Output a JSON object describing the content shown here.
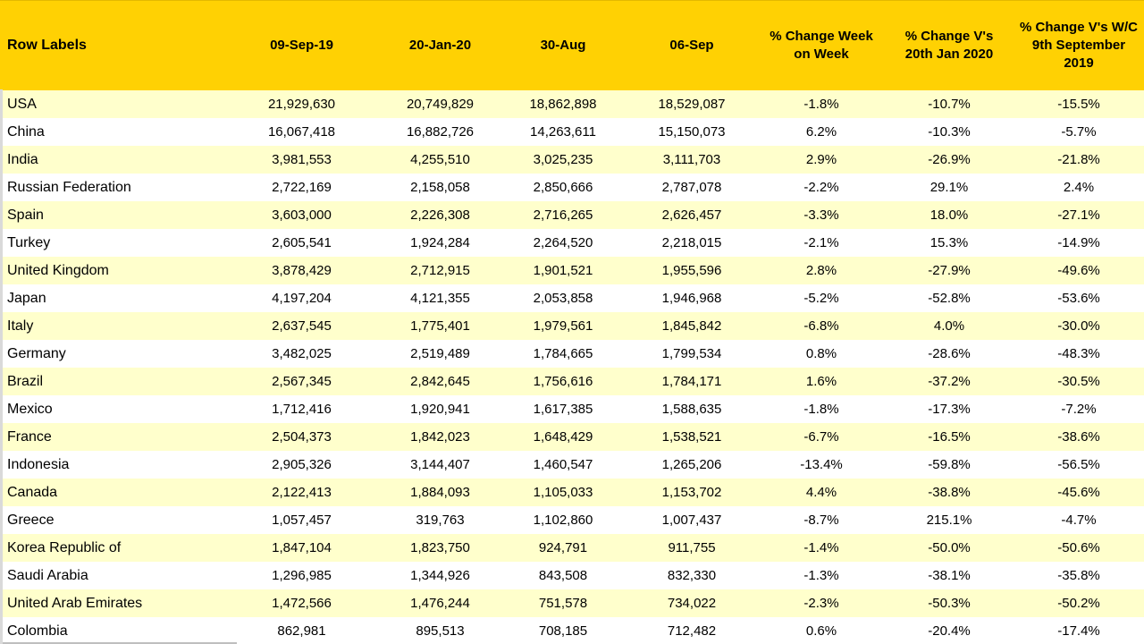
{
  "table": {
    "columns": [
      "Row Labels",
      "09-Sep-19",
      "20-Jan-20",
      "30-Aug",
      "06-Sep",
      "% Change Week on Week",
      "% Change V's 20th Jan 2020",
      "% Change V's W/C 9th September 2019"
    ],
    "rows": [
      [
        "USA",
        "21,929,630",
        "20,749,829",
        "18,862,898",
        "18,529,087",
        "-1.8%",
        "-10.7%",
        "-15.5%"
      ],
      [
        "China",
        "16,067,418",
        "16,882,726",
        "14,263,611",
        "15,150,073",
        "6.2%",
        "-10.3%",
        "-5.7%"
      ],
      [
        "India",
        "3,981,553",
        "4,255,510",
        "3,025,235",
        "3,111,703",
        "2.9%",
        "-26.9%",
        "-21.8%"
      ],
      [
        "Russian Federation",
        "2,722,169",
        "2,158,058",
        "2,850,666",
        "2,787,078",
        "-2.2%",
        "29.1%",
        "2.4%"
      ],
      [
        "Spain",
        "3,603,000",
        "2,226,308",
        "2,716,265",
        "2,626,457",
        "-3.3%",
        "18.0%",
        "-27.1%"
      ],
      [
        "Turkey",
        "2,605,541",
        "1,924,284",
        "2,264,520",
        "2,218,015",
        "-2.1%",
        "15.3%",
        "-14.9%"
      ],
      [
        "United Kingdom",
        "3,878,429",
        "2,712,915",
        "1,901,521",
        "1,955,596",
        "2.8%",
        "-27.9%",
        "-49.6%"
      ],
      [
        "Japan",
        "4,197,204",
        "4,121,355",
        "2,053,858",
        "1,946,968",
        "-5.2%",
        "-52.8%",
        "-53.6%"
      ],
      [
        "Italy",
        "2,637,545",
        "1,775,401",
        "1,979,561",
        "1,845,842",
        "-6.8%",
        "4.0%",
        "-30.0%"
      ],
      [
        "Germany",
        "3,482,025",
        "2,519,489",
        "1,784,665",
        "1,799,534",
        "0.8%",
        "-28.6%",
        "-48.3%"
      ],
      [
        "Brazil",
        "2,567,345",
        "2,842,645",
        "1,756,616",
        "1,784,171",
        "1.6%",
        "-37.2%",
        "-30.5%"
      ],
      [
        "Mexico",
        "1,712,416",
        "1,920,941",
        "1,617,385",
        "1,588,635",
        "-1.8%",
        "-17.3%",
        "-7.2%"
      ],
      [
        "France",
        "2,504,373",
        "1,842,023",
        "1,648,429",
        "1,538,521",
        "-6.7%",
        "-16.5%",
        "-38.6%"
      ],
      [
        "Indonesia",
        "2,905,326",
        "3,144,407",
        "1,460,547",
        "1,265,206",
        "-13.4%",
        "-59.8%",
        "-56.5%"
      ],
      [
        "Canada",
        "2,122,413",
        "1,884,093",
        "1,105,033",
        "1,153,702",
        "4.4%",
        "-38.8%",
        "-45.6%"
      ],
      [
        "Greece",
        "1,057,457",
        "319,763",
        "1,102,860",
        "1,007,437",
        "-8.7%",
        "215.1%",
        "-4.7%"
      ],
      [
        "Korea Republic of",
        "1,847,104",
        "1,823,750",
        "924,791",
        "911,755",
        "-1.4%",
        "-50.0%",
        "-50.6%"
      ],
      [
        "Saudi Arabia",
        "1,296,985",
        "1,344,926",
        "843,508",
        "832,330",
        "-1.3%",
        "-38.1%",
        "-35.8%"
      ],
      [
        "United Arab Emirates",
        "1,472,566",
        "1,476,244",
        "751,578",
        "734,022",
        "-2.3%",
        "-50.3%",
        "-50.2%"
      ],
      [
        "Colombia",
        "862,981",
        "895,513",
        "708,185",
        "712,482",
        "0.6%",
        "-20.4%",
        "-17.4%"
      ]
    ],
    "colors": {
      "header_bg": "#FFD103",
      "band_yellow": "#FFFFCC",
      "band_white": "#FFFFFF",
      "text": "#000000",
      "edge_gray": "#D9D9D9"
    }
  }
}
